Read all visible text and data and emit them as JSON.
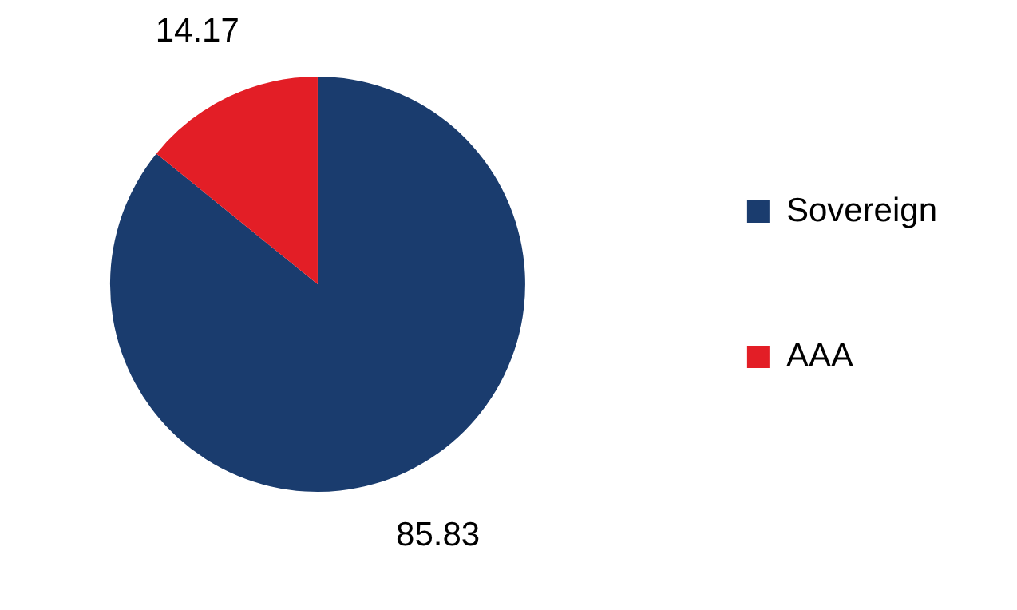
{
  "chart_data": {
    "type": "pie",
    "categories": [
      "Sovereign",
      "AAA"
    ],
    "values": [
      85.83,
      14.17
    ],
    "colors": [
      "#1a3c6e",
      "#e31e26"
    ],
    "data_labels": true,
    "legend": "right"
  }
}
